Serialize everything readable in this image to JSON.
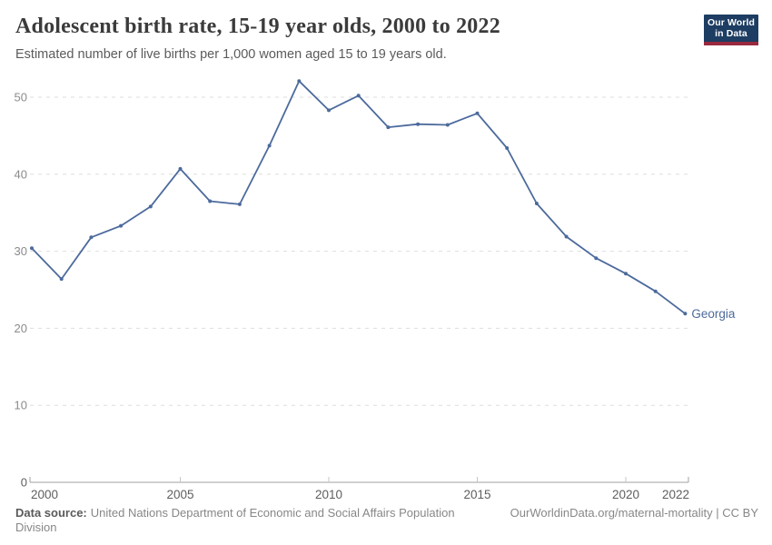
{
  "header": {
    "title": "Adolescent birth rate, 15-19 year olds, 2000 to 2022",
    "subtitle": "Estimated number of live births per 1,000 women aged 15 to 19 years old.",
    "logo": {
      "line1": "Our World",
      "line2": "in Data",
      "bg_color": "#1d3d63",
      "accent_color": "#99293f"
    }
  },
  "chart_data": {
    "type": "line",
    "title": "Adolescent birth rate, 15-19 year olds, 2000 to 2022",
    "xlabel": "",
    "ylabel": "",
    "x": [
      2000,
      2001,
      2002,
      2003,
      2004,
      2005,
      2006,
      2007,
      2008,
      2009,
      2010,
      2011,
      2012,
      2013,
      2014,
      2015,
      2016,
      2017,
      2018,
      2019,
      2020,
      2021,
      2022
    ],
    "series": [
      {
        "name": "Georgia",
        "color": "#4c6a9c",
        "values": [
          30.4,
          26.4,
          31.8,
          33.3,
          35.8,
          40.7,
          36.5,
          36.1,
          43.7,
          52.1,
          48.3,
          50.2,
          46.1,
          46.5,
          46.4,
          47.9,
          43.4,
          36.2,
          31.9,
          29.1,
          27.1,
          24.8,
          21.9
        ]
      }
    ],
    "x_ticks": [
      2000,
      2005,
      2010,
      2015,
      2020,
      2022
    ],
    "y_ticks": [
      0,
      10,
      20,
      30,
      40,
      50
    ],
    "xlim": [
      2000,
      2022
    ],
    "ylim": [
      0,
      52.5
    ],
    "grid": "horizontal-dashed",
    "legend_position": "end-of-line-label",
    "end_label": "Georgia",
    "colors": {
      "grid": "#dddddd",
      "axis": "#a1a1a1",
      "tick": "#c6c6c6",
      "y_tick_label": "#8b8b8b",
      "x_tick_label": "#5e5e5e"
    }
  },
  "footer": {
    "data_source_label": "Data source:",
    "data_source_text": "United Nations Department of Economic and Social Affairs Population Division",
    "credit": "OurWorldinData.org/maternal-mortality | CC BY"
  }
}
